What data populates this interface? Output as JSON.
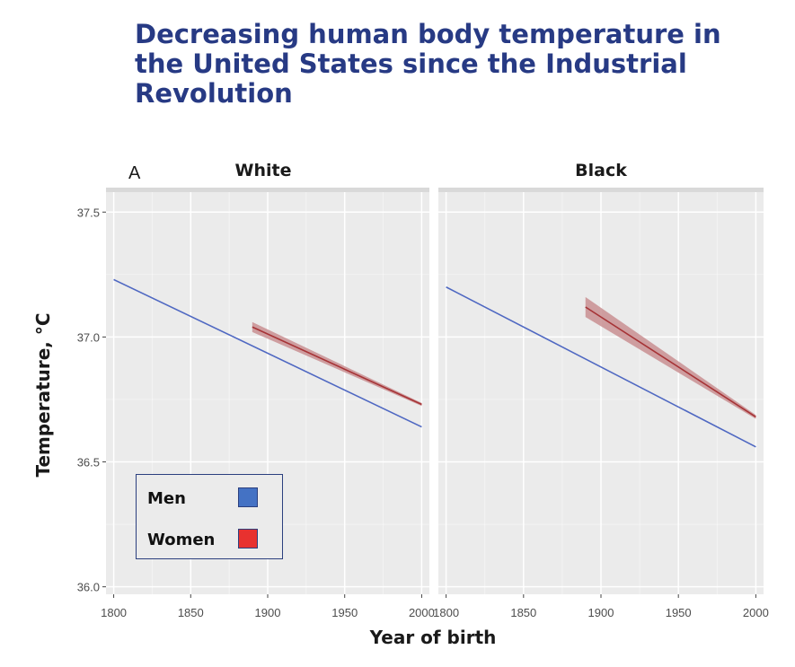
{
  "headline": "Decreasing human body temperature in the United States since the Industrial Revolution",
  "chart_data": {
    "type": "line",
    "panel_letter": "A",
    "xlabel": "Year of birth",
    "ylabel": "Temperature, °C",
    "xlim": [
      1795,
      2005
    ],
    "ylim": [
      35.97,
      37.58
    ],
    "x_ticks": [
      1800,
      1850,
      1900,
      1950,
      2000
    ],
    "x_tick_labels": [
      "1800",
      "1850",
      "1900",
      "1950",
      "2000"
    ],
    "y_ticks": [
      36.0,
      36.5,
      37.0,
      37.5
    ],
    "y_tick_labels": [
      "36.0",
      "36.5",
      "37.0",
      "37.5"
    ],
    "legend": {
      "placement": "bottom-left",
      "entries": [
        {
          "label": "Men",
          "color": "#4472c4"
        },
        {
          "label": "Women",
          "color": "#e8312f"
        }
      ]
    },
    "colors": {
      "men_line": "#4f68c2",
      "women_line": "#a63336",
      "women_band": "#c98f92",
      "panel_bg": "#ebebeb",
      "strip_bg": "#d9d9d9",
      "grid": "#ffffff"
    },
    "panels": [
      {
        "title": "White",
        "series": [
          {
            "name": "Men",
            "x": [
              1800,
              2000
            ],
            "y": [
              37.23,
              36.64
            ],
            "ci_half": [
              0.005,
              0.005
            ]
          },
          {
            "name": "Women",
            "x": [
              1890,
              2000
            ],
            "y": [
              37.04,
              36.73
            ],
            "ci_half": [
              0.02,
              0.006
            ]
          }
        ]
      },
      {
        "title": "Black",
        "series": [
          {
            "name": "Men",
            "x": [
              1800,
              2000
            ],
            "y": [
              37.2,
              36.56
            ],
            "ci_half": [
              0.005,
              0.005
            ]
          },
          {
            "name": "Women",
            "x": [
              1890,
              2000
            ],
            "y": [
              37.12,
              36.68
            ],
            "ci_half": [
              0.04,
              0.008
            ]
          }
        ]
      }
    ]
  }
}
